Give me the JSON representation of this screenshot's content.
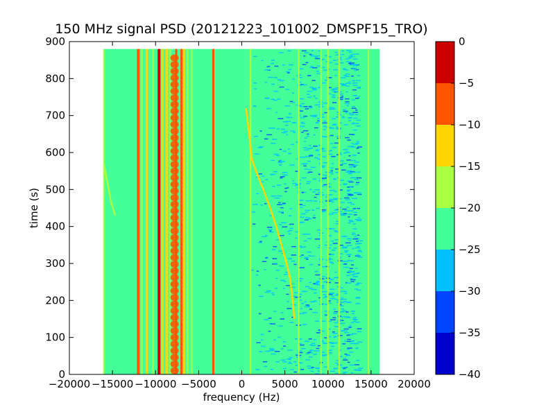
{
  "chart_data": {
    "type": "heatmap",
    "title": "150 MHz signal PSD (20121223_101002_DMSPF15_TRO)",
    "xlabel": "frequency (Hz)",
    "ylabel": "time (s)",
    "xlim": [
      -20000,
      20000
    ],
    "ylim": [
      0,
      900
    ],
    "x_ticks": [
      -20000,
      -15000,
      -10000,
      -5000,
      0,
      5000,
      10000,
      15000,
      20000
    ],
    "x_tick_labels": [
      "−20000",
      "−15000",
      "−10000",
      "−5000",
      "0",
      "5000",
      "10000",
      "15000",
      "20000"
    ],
    "y_ticks": [
      0,
      100,
      200,
      300,
      400,
      500,
      600,
      700,
      800,
      900
    ],
    "y_tick_labels": [
      "0",
      "100",
      "200",
      "300",
      "400",
      "500",
      "600",
      "700",
      "800",
      "900"
    ],
    "data_extent": {
      "x": [
        -16000,
        16000
      ],
      "y": [
        0,
        880
      ]
    },
    "background_level": -22.5,
    "colorbar": {
      "levels": [
        -40,
        -35,
        -30,
        -25,
        -20,
        -15,
        -10,
        -5,
        0
      ],
      "tick_labels": [
        "−40",
        "−35",
        "−30",
        "−25",
        "−20",
        "−15",
        "−10",
        "−5",
        "0"
      ],
      "colors": [
        "#0000cd",
        "#0044ff",
        "#00bfff",
        "#44ff99",
        "#aaff44",
        "#ffd700",
        "#ff5500",
        "#cc0000"
      ]
    },
    "vertical_lines": [
      {
        "x": -16000,
        "level": -17,
        "width": 2
      },
      {
        "x": -12000,
        "level": -7,
        "width": 4
      },
      {
        "x": -11600,
        "level": -17,
        "width": 2
      },
      {
        "x": -11000,
        "level": -12,
        "width": 3
      },
      {
        "x": -10300,
        "level": -17,
        "width": 2
      },
      {
        "x": -9600,
        "level": -2,
        "width": 4
      },
      {
        "x": -9200,
        "level": -12,
        "width": 3
      },
      {
        "x": -8700,
        "level": -12,
        "width": 4
      },
      {
        "x": -8300,
        "level": -17,
        "width": 2
      },
      {
        "x": -7600,
        "level": -7,
        "width": 3
      },
      {
        "x": -7000,
        "level": -7,
        "width": 3
      },
      {
        "x": -6700,
        "level": -12,
        "width": 3
      },
      {
        "x": -6300,
        "level": -17,
        "width": 2
      },
      {
        "x": -5800,
        "level": -17,
        "width": 2
      },
      {
        "x": -3300,
        "level": -7,
        "width": 3
      },
      {
        "x": 1000,
        "level": -17,
        "width": 2
      },
      {
        "x": 6600,
        "level": -17,
        "width": 2
      },
      {
        "x": 9200,
        "level": -17,
        "width": 2
      },
      {
        "x": 10000,
        "level": -17,
        "width": 2
      },
      {
        "x": 11300,
        "level": -17,
        "width": 2
      },
      {
        "x": 14700,
        "level": -17,
        "width": 2
      }
    ],
    "traces": [
      {
        "level": -12,
        "points": [
          [
            500,
            720
          ],
          [
            800,
            660
          ],
          [
            1200,
            580
          ],
          [
            1800,
            540
          ],
          [
            2500,
            500
          ],
          [
            3300,
            450
          ],
          [
            4000,
            400
          ],
          [
            4600,
            350
          ],
          [
            5200,
            300
          ],
          [
            5600,
            260
          ],
          [
            5900,
            200
          ],
          [
            6100,
            150
          ]
        ]
      },
      {
        "level": -17,
        "points": [
          [
            -16000,
            570
          ],
          [
            -15600,
            520
          ],
          [
            -15200,
            470
          ],
          [
            -14700,
            430
          ]
        ]
      }
    ],
    "noise_region": {
      "x": [
        1000,
        13500
      ],
      "levels": [
        -27.5,
        -32
      ]
    },
    "dotted_column": {
      "x": -7800,
      "level": -7
    }
  }
}
